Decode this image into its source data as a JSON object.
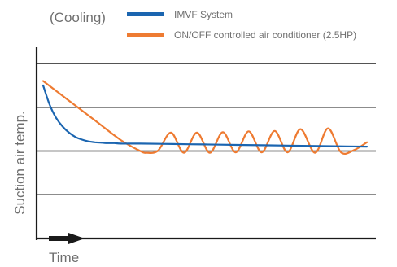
{
  "chart_data": {
    "type": "line",
    "title": "(Cooling)",
    "xlabel": "Time",
    "ylabel": "Suction air temp.",
    "xlim": [
      0,
      100
    ],
    "ylim": [
      0,
      4.4
    ],
    "gridlines_y": [
      0,
      1,
      2,
      3,
      4
    ],
    "grid": true,
    "axis_ticks": "none",
    "legend_position": "top",
    "colors": {
      "text": "#6f6f6f",
      "grid": "#1a1a1a"
    },
    "series": [
      {
        "name": "IMVF System",
        "color": "#1b65b0",
        "x": [
          0,
          2,
          4,
          6,
          8,
          10,
          12,
          14,
          16,
          18,
          20,
          22,
          24,
          30,
          40,
          50,
          60,
          70,
          80,
          90,
          100
        ],
        "y": [
          3.5,
          3.06,
          2.76,
          2.56,
          2.42,
          2.32,
          2.26,
          2.22,
          2.2,
          2.19,
          2.18,
          2.18,
          2.17,
          2.17,
          2.16,
          2.15,
          2.14,
          2.13,
          2.12,
          2.11,
          2.1
        ]
      },
      {
        "name": "ON/OFF controlled air conditioner (2.5HP)",
        "color": "#ee7b32",
        "x": [
          0,
          8,
          16,
          24,
          30,
          32,
          35.5,
          39.5,
          43.5,
          47.5,
          51.5,
          55.5,
          59.5,
          63.5,
          67.5,
          71.5,
          75.5,
          79.5,
          84,
          88,
          92,
          96,
          100
        ],
        "y": [
          3.6,
          3.15,
          2.7,
          2.25,
          2.0,
          1.96,
          2.01,
          2.42,
          1.96,
          2.42,
          1.96,
          2.43,
          1.97,
          2.45,
          1.97,
          2.46,
          1.97,
          2.5,
          1.96,
          2.52,
          1.97,
          2.02,
          2.2
        ]
      }
    ]
  }
}
